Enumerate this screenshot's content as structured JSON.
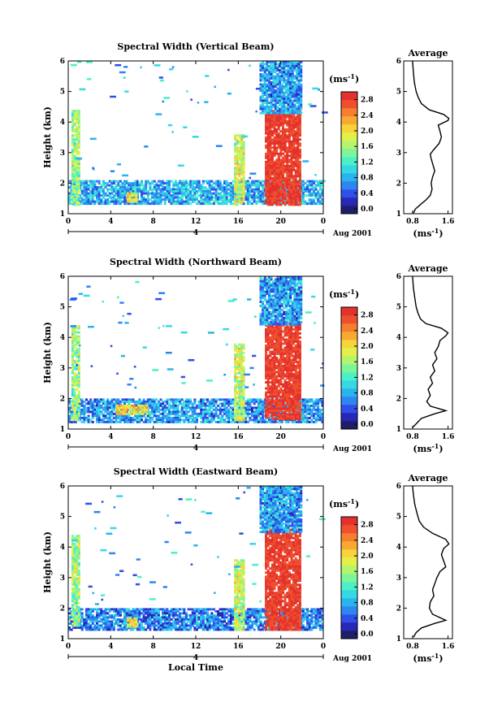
{
  "figure": {
    "xlabel": "Local Time",
    "colorbar_unit": "(ms",
    "colorbar_unit_exp": "-1",
    "date_label": "Aug 2001",
    "day_marker": "4",
    "colormap": [
      "#1e1e6a",
      "#2727b8",
      "#2f4fe8",
      "#2e86f0",
      "#2bb3ee",
      "#36d8e6",
      "#4cf0c8",
      "#7ff59a",
      "#b4f56c",
      "#e4f04a",
      "#f7d43a",
      "#f9a931",
      "#f67e2e",
      "#ef4f2e",
      "#e3322e"
    ]
  },
  "chart_data": [
    {
      "type": "heatmap",
      "title": "Spectral Width (Vertical Beam)",
      "xlabel": "",
      "ylabel": "Height (km)",
      "x_ticks": [
        "0",
        "4",
        "8",
        "12",
        "16",
        "20",
        "0"
      ],
      "y_ticks": [
        "1",
        "2",
        "3",
        "4",
        "5",
        "6"
      ],
      "xlim": [
        0,
        24
      ],
      "ylim": [
        1,
        6
      ],
      "colorbar_ticks": [
        "0.0",
        "0.4",
        "0.8",
        "1.2",
        "1.6",
        "2.0",
        "2.4",
        "2.8"
      ],
      "colorbar_range": [
        0,
        3.0
      ],
      "features": [
        {
          "x": [
            0,
            24
          ],
          "y": [
            1.3,
            2.1
          ],
          "value": 0.9
        },
        {
          "x": [
            0.3,
            1.0
          ],
          "y": [
            1.3,
            4.4
          ],
          "value": 1.6
        },
        {
          "x": [
            5.5,
            6.5
          ],
          "y": [
            1.4,
            1.7
          ],
          "value": 2.0
        },
        {
          "x": [
            15.6,
            16.6
          ],
          "y": [
            1.3,
            3.6
          ],
          "value": 1.8
        },
        {
          "x": [
            18.5,
            21.8
          ],
          "y": [
            1.3,
            4.4
          ],
          "value": 2.8
        },
        {
          "x": [
            18.0,
            22.0
          ],
          "y": [
            4.3,
            6.0
          ],
          "value": 0.8
        }
      ]
    },
    {
      "type": "line",
      "title": "Average",
      "xlabel": "(ms-1)",
      "x_ticks": [
        "0.8",
        "1.6"
      ],
      "y_ticks": [
        "1",
        "2",
        "3",
        "4",
        "5",
        "6"
      ],
      "xlim": [
        0.6,
        1.7
      ],
      "ylim": [
        1,
        6
      ],
      "points": [
        [
          0.82,
          1.02
        ],
        [
          0.86,
          1.15
        ],
        [
          0.98,
          1.3
        ],
        [
          1.1,
          1.45
        ],
        [
          1.2,
          1.6
        ],
        [
          1.24,
          1.8
        ],
        [
          1.22,
          2.0
        ],
        [
          1.25,
          2.2
        ],
        [
          1.3,
          2.4
        ],
        [
          1.26,
          2.6
        ],
        [
          1.22,
          2.8
        ],
        [
          1.2,
          2.95
        ],
        [
          1.28,
          3.1
        ],
        [
          1.4,
          3.3
        ],
        [
          1.45,
          3.5
        ],
        [
          1.42,
          3.7
        ],
        [
          1.38,
          3.9
        ],
        [
          1.6,
          4.05
        ],
        [
          1.62,
          4.12
        ],
        [
          1.5,
          4.25
        ],
        [
          1.18,
          4.4
        ],
        [
          1.0,
          4.6
        ],
        [
          0.93,
          4.8
        ],
        [
          0.88,
          5.0
        ],
        [
          0.84,
          5.3
        ],
        [
          0.82,
          5.6
        ],
        [
          0.8,
          6.0
        ]
      ]
    },
    {
      "type": "heatmap",
      "title": "Spectral Width (Northward Beam)",
      "xlabel": "",
      "ylabel": "Height (km)",
      "x_ticks": [
        "0",
        "4",
        "8",
        "12",
        "16",
        "20",
        "0"
      ],
      "y_ticks": [
        "1",
        "2",
        "3",
        "4",
        "5",
        "6"
      ],
      "xlim": [
        0,
        24
      ],
      "ylim": [
        1,
        6
      ],
      "colorbar_ticks": [
        "0.0",
        "0.4",
        "0.8",
        "1.2",
        "1.6",
        "2.0",
        "2.4",
        "2.8"
      ],
      "colorbar_range": [
        0,
        3.0
      ],
      "features": [
        {
          "x": [
            0,
            24
          ],
          "y": [
            1.2,
            2.0
          ],
          "value": 0.8
        },
        {
          "x": [
            0.3,
            1.0
          ],
          "y": [
            1.3,
            4.4
          ],
          "value": 1.6
        },
        {
          "x": [
            4.5,
            7.5
          ],
          "y": [
            1.5,
            1.8
          ],
          "value": 2.0
        },
        {
          "x": [
            15.6,
            16.6
          ],
          "y": [
            1.3,
            3.8
          ],
          "value": 1.8
        },
        {
          "x": [
            18.5,
            21.8
          ],
          "y": [
            1.3,
            4.5
          ],
          "value": 2.8
        },
        {
          "x": [
            18.0,
            22.0
          ],
          "y": [
            4.4,
            6.0
          ],
          "value": 0.8
        }
      ]
    },
    {
      "type": "line",
      "title": "Average",
      "xlabel": "(ms-1)",
      "x_ticks": [
        "0.8",
        "1.6"
      ],
      "y_ticks": [
        "1",
        "2",
        "3",
        "4",
        "5",
        "6"
      ],
      "xlim": [
        0.6,
        1.7
      ],
      "ylim": [
        1,
        6
      ],
      "points": [
        [
          0.8,
          1.05
        ],
        [
          0.9,
          1.2
        ],
        [
          1.0,
          1.35
        ],
        [
          1.3,
          1.5
        ],
        [
          1.55,
          1.6
        ],
        [
          1.2,
          1.75
        ],
        [
          1.12,
          1.9
        ],
        [
          1.2,
          2.1
        ],
        [
          1.15,
          2.3
        ],
        [
          1.25,
          2.5
        ],
        [
          1.2,
          2.7
        ],
        [
          1.3,
          2.9
        ],
        [
          1.25,
          3.1
        ],
        [
          1.35,
          3.3
        ],
        [
          1.3,
          3.5
        ],
        [
          1.38,
          3.7
        ],
        [
          1.42,
          3.9
        ],
        [
          1.55,
          4.05
        ],
        [
          1.6,
          4.15
        ],
        [
          1.45,
          4.3
        ],
        [
          1.1,
          4.45
        ],
        [
          0.98,
          4.6
        ],
        [
          0.92,
          4.8
        ],
        [
          0.88,
          5.0
        ],
        [
          0.85,
          5.3
        ],
        [
          0.82,
          5.6
        ],
        [
          0.8,
          6.0
        ]
      ]
    },
    {
      "type": "heatmap",
      "title": "Spectral Width (Eastward Beam)",
      "xlabel": "Local Time",
      "ylabel": "Height (km)",
      "x_ticks": [
        "0",
        "4",
        "8",
        "12",
        "16",
        "20",
        "0"
      ],
      "y_ticks": [
        "1",
        "2",
        "3",
        "4",
        "5",
        "6"
      ],
      "xlim": [
        0,
        24
      ],
      "ylim": [
        1,
        6
      ],
      "colorbar_ticks": [
        "0.0",
        "0.4",
        "0.8",
        "1.2",
        "1.6",
        "2.0",
        "2.4",
        "2.8"
      ],
      "colorbar_range": [
        0,
        3.0
      ],
      "features": [
        {
          "x": [
            0,
            24
          ],
          "y": [
            1.3,
            2.0
          ],
          "value": 0.7
        },
        {
          "x": [
            0.3,
            1.0
          ],
          "y": [
            1.4,
            4.4
          ],
          "value": 1.6
        },
        {
          "x": [
            5.5,
            6.5
          ],
          "y": [
            1.4,
            1.7
          ],
          "value": 2.0
        },
        {
          "x": [
            15.6,
            16.6
          ],
          "y": [
            1.3,
            3.6
          ],
          "value": 1.8
        },
        {
          "x": [
            18.5,
            21.8
          ],
          "y": [
            1.3,
            4.6
          ],
          "value": 2.8
        },
        {
          "x": [
            18.0,
            22.0
          ],
          "y": [
            4.5,
            6.0
          ],
          "value": 0.8
        }
      ]
    },
    {
      "type": "line",
      "title": "Average",
      "xlabel": "(ms-1)",
      "x_ticks": [
        "0.8",
        "1.6"
      ],
      "y_ticks": [
        "1",
        "2",
        "3",
        "4",
        "5",
        "6"
      ],
      "xlim": [
        0.6,
        1.7
      ],
      "ylim": [
        1,
        6
      ],
      "points": [
        [
          0.82,
          1.05
        ],
        [
          0.88,
          1.2
        ],
        [
          1.0,
          1.35
        ],
        [
          1.3,
          1.5
        ],
        [
          1.55,
          1.6
        ],
        [
          1.25,
          1.8
        ],
        [
          1.18,
          2.0
        ],
        [
          1.2,
          2.2
        ],
        [
          1.28,
          2.4
        ],
        [
          1.25,
          2.6
        ],
        [
          1.3,
          2.8
        ],
        [
          1.35,
          3.0
        ],
        [
          1.42,
          3.2
        ],
        [
          1.55,
          3.35
        ],
        [
          1.5,
          3.55
        ],
        [
          1.45,
          3.75
        ],
        [
          1.5,
          3.95
        ],
        [
          1.62,
          4.1
        ],
        [
          1.55,
          4.25
        ],
        [
          1.25,
          4.45
        ],
        [
          1.05,
          4.65
        ],
        [
          0.95,
          4.85
        ],
        [
          0.9,
          5.1
        ],
        [
          0.85,
          5.4
        ],
        [
          0.82,
          5.7
        ],
        [
          0.8,
          6.0
        ]
      ]
    }
  ]
}
